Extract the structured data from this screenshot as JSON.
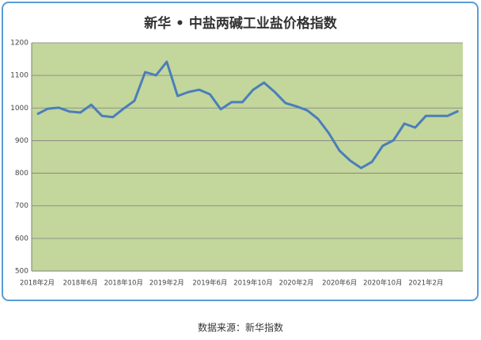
{
  "chart_data": {
    "type": "line",
    "title": "新华 • 中盐两碱工业盐价格指数",
    "source": "数据来源：新华指数",
    "categories": [
      "2018年2月",
      null,
      null,
      null,
      "2018年6月",
      null,
      null,
      null,
      "2018年10月",
      null,
      null,
      null,
      "2019年2月",
      null,
      null,
      null,
      "2019年6月",
      null,
      null,
      null,
      "2019年10月",
      null,
      null,
      null,
      "2020年2月",
      null,
      null,
      null,
      "2020年6月",
      null,
      null,
      null,
      "2020年10月",
      null,
      null,
      null,
      "2021年2月",
      null,
      null,
      null
    ],
    "series": [
      {
        "name": "新华 • 中盐两碱工业盐价格指数",
        "color": "#4a7ebb",
        "values": [
          981,
          998,
          1001,
          989,
          986,
          1010,
          976,
          972,
          998,
          1022,
          1110,
          1100,
          1142,
          1037,
          1049,
          1056,
          1042,
          996,
          1018,
          1018,
          1056,
          1078,
          1049,
          1015,
          1005,
          993,
          967,
          923,
          869,
          838,
          816,
          835,
          884,
          901,
          952,
          940,
          976,
          976,
          976,
          991
        ]
      }
    ],
    "ylim": [
      500,
      1200
    ],
    "yticks": [
      500,
      600,
      700,
      800,
      900,
      1000,
      1100,
      1200
    ],
    "grid": true,
    "plot_color": "#c3d69b"
  }
}
